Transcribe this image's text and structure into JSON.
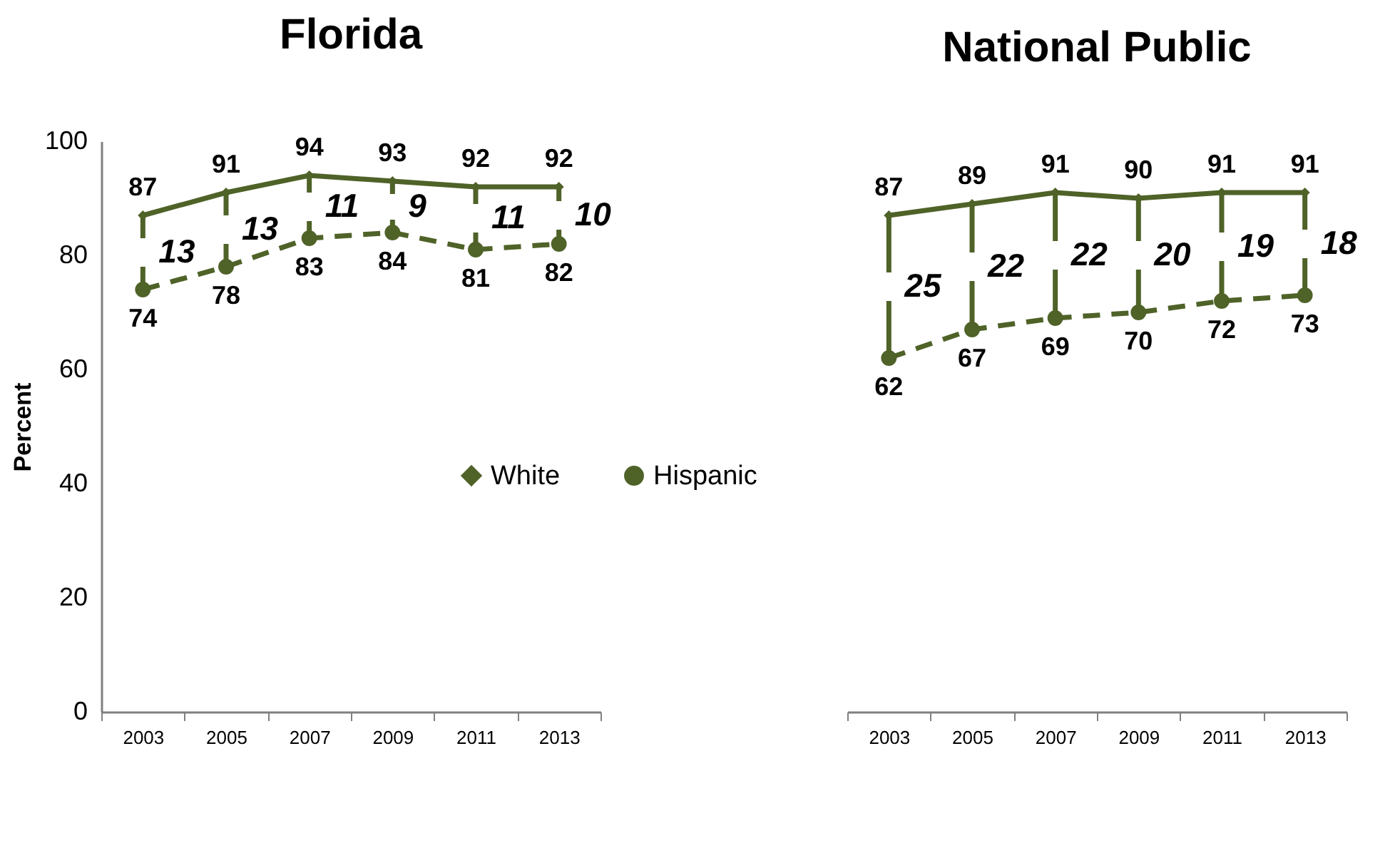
{
  "chart_data": [
    {
      "type": "line",
      "title": "Florida",
      "ylabel": "Percent",
      "categories": [
        "2003",
        "2005",
        "2007",
        "2009",
        "2011",
        "2013"
      ],
      "ylim": [
        0,
        100
      ],
      "yticks": [
        0,
        20,
        40,
        60,
        80,
        100
      ],
      "grid": false,
      "legend": "right",
      "data_labels": true,
      "series": [
        {
          "name": "White",
          "color": "#4f6228",
          "values": [
            87,
            91,
            94,
            93,
            92,
            92
          ],
          "marker": "diamond",
          "line_style": "solid"
        },
        {
          "name": "Hispanic",
          "color": "#4f6228",
          "values": [
            74,
            78,
            83,
            84,
            81,
            82
          ],
          "marker": "circle",
          "line_style": "dashed"
        }
      ],
      "annotations": [
        "13",
        "13",
        "11",
        "9",
        "11",
        "10"
      ]
    },
    {
      "type": "line",
      "title": "National Public",
      "categories": [
        "2003",
        "2005",
        "2007",
        "2009",
        "2011",
        "2013"
      ],
      "ylim": [
        0,
        100
      ],
      "yticks": [
        0,
        20,
        40,
        60,
        80,
        100
      ],
      "grid": false,
      "tick_labels": "x",
      "data_labels": true,
      "series": [
        {
          "color": "#4f6228",
          "values": [
            87,
            89,
            91,
            90,
            91,
            91
          ],
          "marker": "diamond",
          "line_style": "solid"
        },
        {
          "color": "#4f6228",
          "values": [
            62,
            67,
            69,
            70,
            72,
            73
          ],
          "marker": "circle",
          "line_style": "dashed"
        }
      ],
      "annotations": [
        "25",
        "22",
        "22",
        "20",
        "19",
        "18"
      ]
    }
  ]
}
